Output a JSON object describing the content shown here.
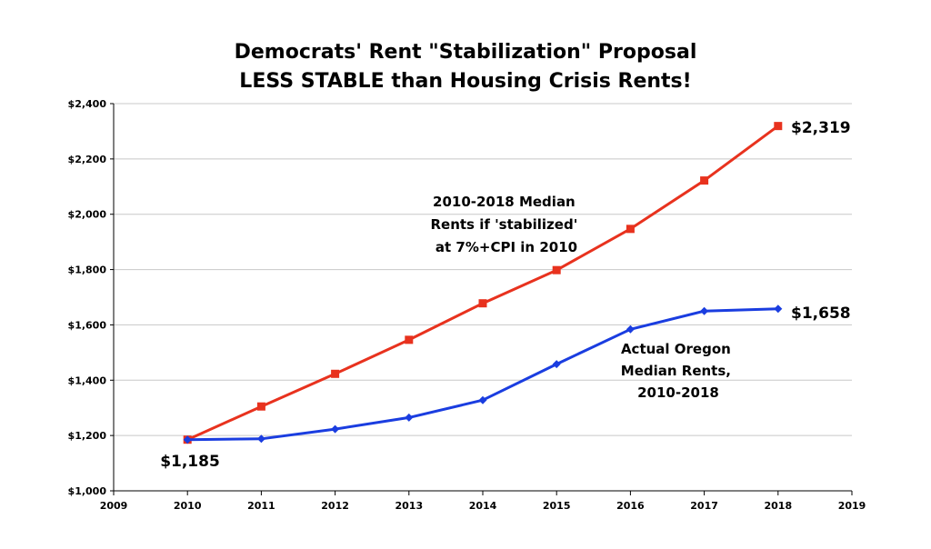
{
  "chart_data": {
    "type": "line",
    "title": "Democrats' Rent \"Stabilization\" Proposal",
    "subtitle": "LESS STABLE than Housing Crisis Rents!",
    "xlabel": "",
    "ylabel": "",
    "xlim": [
      2009,
      2019
    ],
    "ylim": [
      1000,
      2400
    ],
    "x_ticks": [
      "2009",
      "2010",
      "2011",
      "2012",
      "2013",
      "2014",
      "2015",
      "2016",
      "2017",
      "2018",
      "2019"
    ],
    "y_ticks": [
      "$1,000",
      "$1,200",
      "$1,400",
      "$1,600",
      "$1,800",
      "$2,000",
      "$2,200",
      "$2,400"
    ],
    "y_tick_values": [
      1000,
      1200,
      1400,
      1600,
      1800,
      2000,
      2200,
      2400
    ],
    "grid": "horizontal",
    "x": [
      2010,
      2011,
      2012,
      2013,
      2014,
      2015,
      2016,
      2017,
      2018
    ],
    "series": [
      {
        "color": "#e8321e",
        "marker": "square",
        "values": [
          1185,
          1305,
          1423,
          1546,
          1678,
          1798,
          1947,
          2122,
          2319
        ]
      },
      {
        "color": "#1a3de0",
        "marker": "diamond",
        "values": [
          1185,
          1188,
          1223,
          1265,
          1328,
          1458,
          1584,
          1650,
          1658
        ]
      }
    ],
    "annotations": {
      "red_note": [
        "2010-2018 Median",
        "Rents if 'stabilized'",
        "at 7%+CPI in 2010"
      ],
      "blue_note": [
        "Actual Oregon",
        "Median Rents,",
        "2010-2018"
      ],
      "start_label": "$1,185",
      "red_end_label": "$2,319",
      "blue_end_label": "$1,658"
    }
  }
}
